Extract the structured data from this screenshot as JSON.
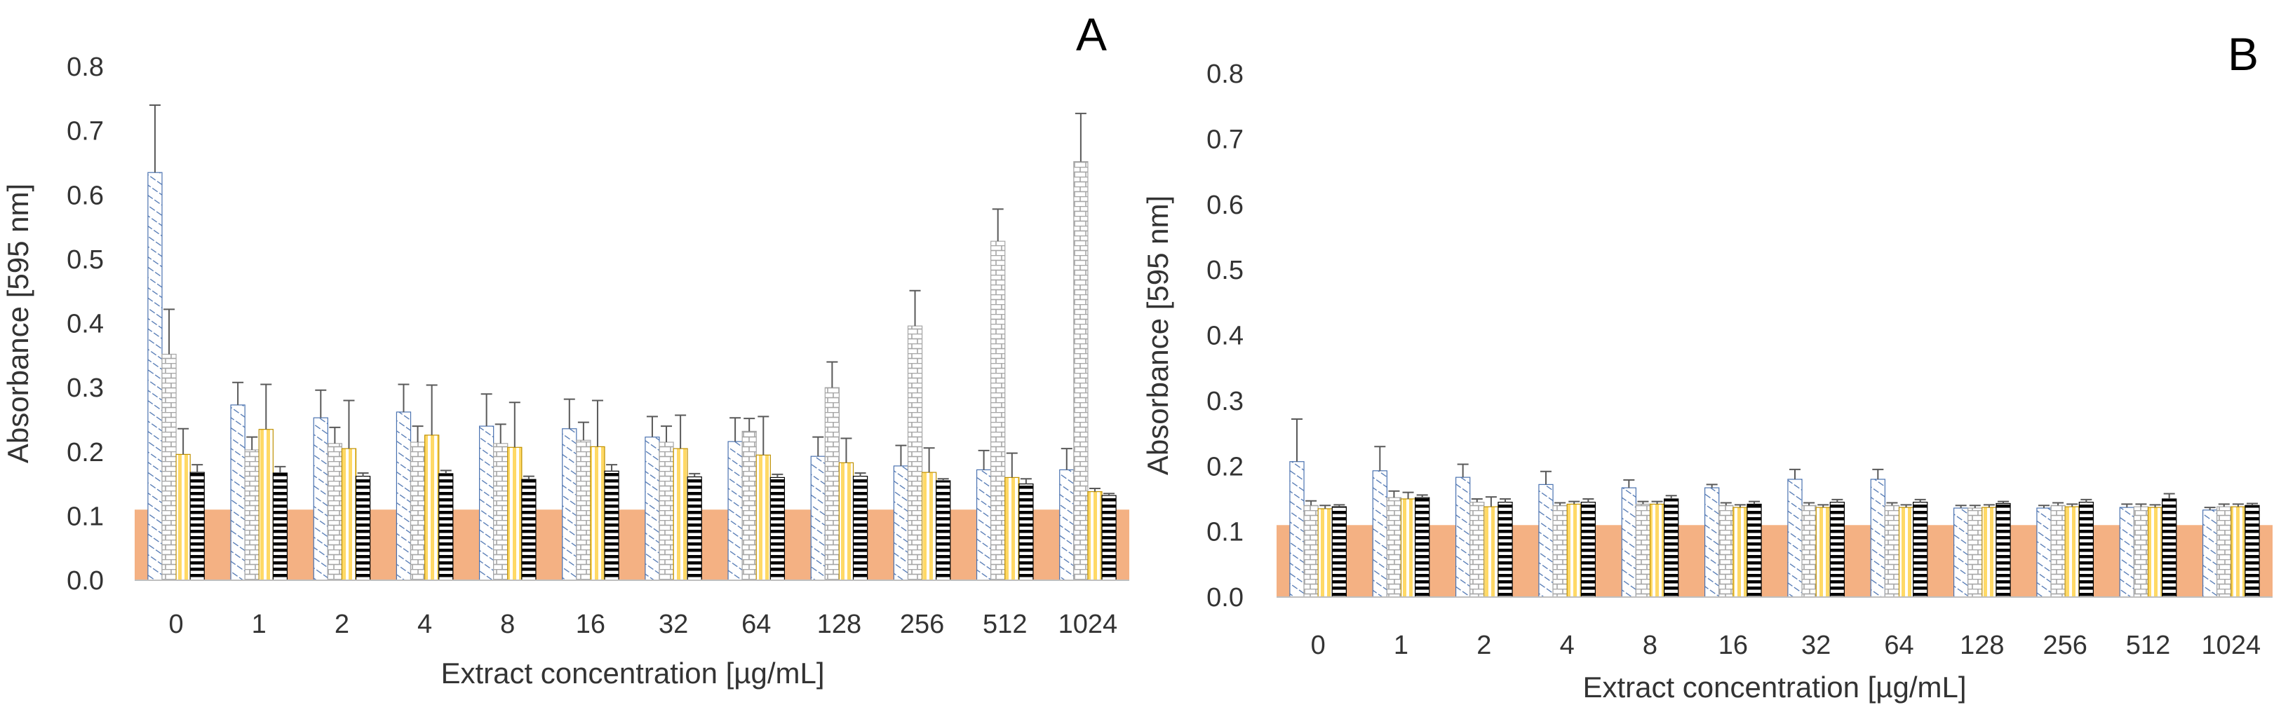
{
  "chart_data": [
    {
      "type": "bar",
      "panel_label": "A",
      "xlabel": "Extract concentration [µg/mL]",
      "ylabel": "Absorbance [595 nm]",
      "ylim": [
        0,
        0.8
      ],
      "yticks": [
        "0.0",
        "0.1",
        "0.2",
        "0.3",
        "0.4",
        "0.5",
        "0.6",
        "0.7",
        "0.8"
      ],
      "categories": [
        "0",
        "1",
        "2",
        "4",
        "8",
        "16",
        "32",
        "64",
        "128",
        "256",
        "512",
        "1024"
      ],
      "baseline": {
        "value": 0.11,
        "color": "#f4b183"
      },
      "series": [
        {
          "pattern": "diag",
          "values": [
            0.635,
            0.273,
            0.253,
            0.262,
            0.24,
            0.236,
            0.223,
            0.216,
            0.193,
            0.178,
            0.172,
            0.172
          ],
          "errors": [
            0.105,
            0.035,
            0.043,
            0.043,
            0.05,
            0.046,
            0.032,
            0.037,
            0.03,
            0.032,
            0.03,
            0.033
          ]
        },
        {
          "pattern": "brick",
          "values": [
            0.352,
            0.203,
            0.213,
            0.215,
            0.213,
            0.218,
            0.215,
            0.232,
            0.3,
            0.396,
            0.528,
            0.652
          ],
          "errors": [
            0.07,
            0.02,
            0.025,
            0.025,
            0.03,
            0.028,
            0.025,
            0.02,
            0.04,
            0.055,
            0.05,
            0.075
          ]
        },
        {
          "pattern": "vert",
          "values": [
            0.196,
            0.235,
            0.205,
            0.226,
            0.207,
            0.208,
            0.205,
            0.195,
            0.183,
            0.168,
            0.16,
            0.138
          ],
          "errors": [
            0.04,
            0.07,
            0.075,
            0.078,
            0.07,
            0.072,
            0.052,
            0.06,
            0.038,
            0.038,
            0.038,
            0.005
          ]
        },
        {
          "pattern": "horiz",
          "values": [
            0.168,
            0.167,
            0.162,
            0.166,
            0.157,
            0.17,
            0.161,
            0.16,
            0.162,
            0.155,
            0.15,
            0.132
          ],
          "errors": [
            0.012,
            0.01,
            0.005,
            0.005,
            0.005,
            0.01,
            0.005,
            0.005,
            0.005,
            0.003,
            0.008,
            0.003
          ]
        }
      ]
    },
    {
      "type": "bar",
      "panel_label": "B",
      "xlabel": "Extract concentration [µg/mL]",
      "ylabel": "Absorbance [595 nm]",
      "ylim": [
        0,
        0.8
      ],
      "yticks": [
        "0.0",
        "0.1",
        "0.2",
        "0.3",
        "0.4",
        "0.5",
        "0.6",
        "0.7",
        "0.8"
      ],
      "categories": [
        "0",
        "1",
        "2",
        "4",
        "8",
        "16",
        "32",
        "64",
        "128",
        "256",
        "512",
        "1024"
      ],
      "baseline": {
        "value": 0.11,
        "color": "#f4b183"
      },
      "series": [
        {
          "pattern": "diag",
          "values": [
            0.207,
            0.193,
            0.183,
            0.172,
            0.167,
            0.167,
            0.18,
            0.18,
            0.136,
            0.136,
            0.137,
            0.133
          ],
          "errors": [
            0.065,
            0.037,
            0.02,
            0.02,
            0.012,
            0.005,
            0.015,
            0.015,
            0.004,
            0.004,
            0.005,
            0.004
          ]
        },
        {
          "pattern": "brick",
          "values": [
            0.14,
            0.152,
            0.145,
            0.14,
            0.142,
            0.14,
            0.14,
            0.14,
            0.136,
            0.14,
            0.138,
            0.138
          ],
          "errors": [
            0.007,
            0.01,
            0.005,
            0.004,
            0.004,
            0.004,
            0.004,
            0.004,
            0.004,
            0.004,
            0.004,
            0.004
          ]
        },
        {
          "pattern": "vert",
          "values": [
            0.135,
            0.15,
            0.138,
            0.142,
            0.142,
            0.137,
            0.137,
            0.137,
            0.137,
            0.138,
            0.137,
            0.138
          ],
          "errors": [
            0.005,
            0.01,
            0.015,
            0.004,
            0.004,
            0.004,
            0.004,
            0.004,
            0.004,
            0.004,
            0.004,
            0.004
          ]
        },
        {
          "pattern": "horiz",
          "values": [
            0.138,
            0.152,
            0.145,
            0.145,
            0.15,
            0.142,
            0.145,
            0.145,
            0.143,
            0.145,
            0.15,
            0.14
          ],
          "errors": [
            0.003,
            0.004,
            0.005,
            0.005,
            0.005,
            0.004,
            0.004,
            0.004,
            0.003,
            0.004,
            0.008,
            0.003
          ]
        }
      ]
    }
  ],
  "colors": {
    "axis": "#bfbfbf",
    "text": "#333333",
    "pattern_blue": "#4a72b0",
    "pattern_gray": "#a6a6a6",
    "pattern_yellow": "#ffd966",
    "pattern_black": "#000000",
    "error_bar": "#595959",
    "baseline": "#f4b183"
  }
}
